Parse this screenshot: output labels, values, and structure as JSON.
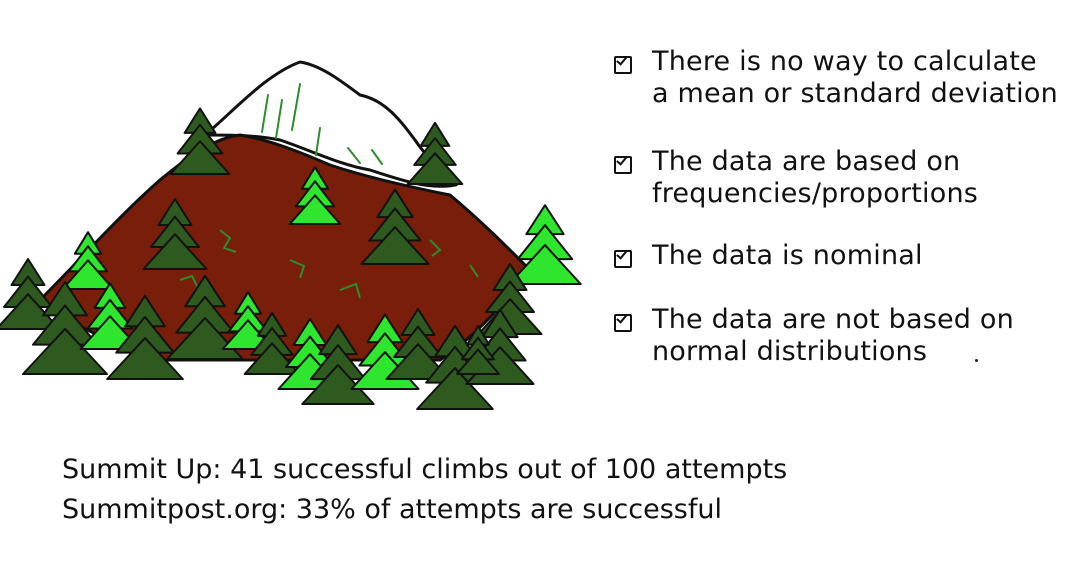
{
  "checklist": [
    {
      "line1": "There is no way to calculate",
      "line2": "a mean or standard deviation"
    },
    {
      "line1": "The data are based on",
      "line2": "frequencies/proportions"
    },
    {
      "line1": "The data is nominal",
      "line2": ""
    },
    {
      "line1": "The data are not based on",
      "line2": "normal distributions"
    }
  ],
  "notes": [
    "Summit Up: 41 successful climbs out of 100 attempts",
    "Summitpost.org: 33% of attempts are successful"
  ],
  "colors": {
    "mountain": "#7a1e0c",
    "snow": "#ffffff",
    "tree_dark": "#2f5a1f",
    "tree_light": "#2ee62e",
    "ink": "#111111",
    "green_speckle": "#2e8b2e"
  },
  "icons": {
    "checkbox": "checked-box-icon",
    "mountain": "mountain-illustration"
  }
}
